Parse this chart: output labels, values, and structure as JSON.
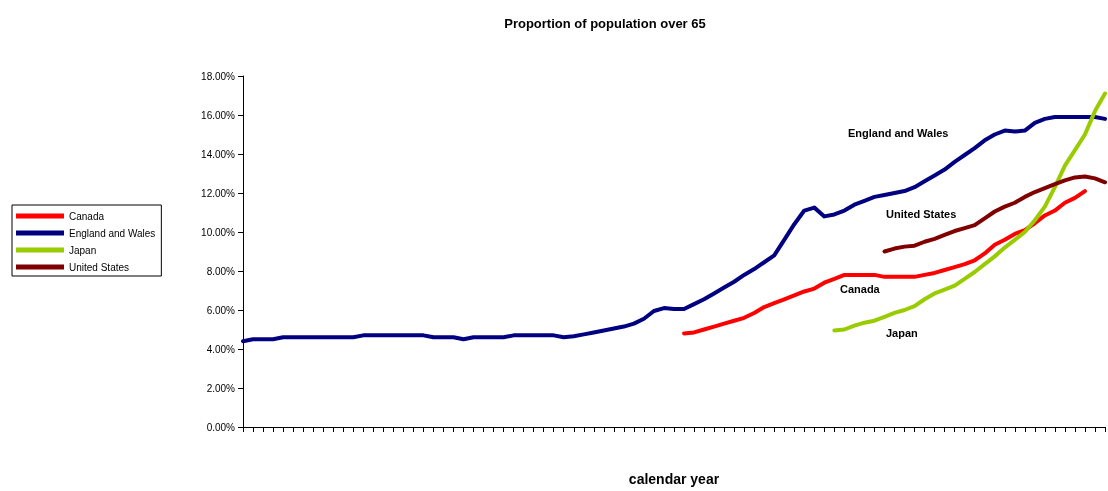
{
  "chart_data": {
    "type": "line",
    "title": "Proportion of population over 65",
    "xlabel": "calendar year",
    "categories": [
      null,
      null,
      null,
      null,
      null,
      null,
      null,
      null,
      null,
      null,
      null,
      null,
      null,
      null,
      null,
      null,
      null,
      null,
      null,
      null,
      null,
      null,
      null,
      null,
      null,
      null,
      null,
      null,
      null,
      null,
      null,
      null,
      null,
      null,
      null,
      null,
      null,
      null,
      null,
      null,
      null,
      null,
      null,
      null,
      null,
      null,
      null,
      null,
      null,
      null,
      null,
      null,
      null,
      null,
      null,
      null,
      null,
      null,
      null,
      null,
      null,
      null,
      null,
      null,
      null,
      null,
      null,
      null,
      null,
      null,
      null,
      null,
      null,
      null,
      null,
      null,
      null,
      null,
      null,
      null,
      null,
      null,
      null,
      null,
      null,
      null,
      null
    ],
    "series": [
      {
        "name": "Canada",
        "color": "#ff0000",
        "values": [
          null,
          null,
          null,
          null,
          null,
          null,
          null,
          null,
          null,
          null,
          null,
          null,
          null,
          null,
          null,
          null,
          null,
          null,
          null,
          null,
          null,
          null,
          null,
          null,
          null,
          null,
          null,
          null,
          null,
          null,
          null,
          null,
          null,
          null,
          null,
          null,
          null,
          null,
          null,
          null,
          null,
          null,
          null,
          null,
          4.8,
          4.85,
          5.0,
          5.15,
          5.3,
          5.45,
          5.6,
          5.85,
          6.15,
          6.35,
          6.55,
          6.75,
          6.95,
          7.1,
          7.4,
          7.6,
          7.8,
          7.8,
          7.8,
          7.8,
          7.7,
          7.7,
          7.7,
          7.7,
          7.8,
          7.9,
          8.05,
          8.2,
          8.35,
          8.55,
          8.9,
          9.35,
          9.6,
          9.9,
          10.1,
          10.45,
          10.85,
          11.1,
          11.5,
          11.75,
          12.1,
          null,
          null
        ]
      },
      {
        "name": "England and Wales",
        "color": "#000080",
        "values": [
          4.4,
          4.5,
          4.5,
          4.5,
          4.6,
          4.6,
          4.6,
          4.6,
          4.6,
          4.6,
          4.6,
          4.6,
          4.7,
          4.7,
          4.7,
          4.7,
          4.7,
          4.7,
          4.7,
          4.6,
          4.6,
          4.6,
          4.5,
          4.6,
          4.6,
          4.6,
          4.6,
          4.7,
          4.7,
          4.7,
          4.7,
          4.7,
          4.6,
          4.65,
          4.75,
          4.85,
          4.95,
          5.05,
          5.15,
          5.3,
          5.55,
          5.95,
          6.1,
          6.05,
          6.05,
          6.3,
          6.55,
          6.85,
          7.15,
          7.45,
          7.8,
          8.1,
          8.45,
          8.8,
          9.6,
          10.4,
          11.1,
          11.25,
          10.8,
          10.9,
          11.1,
          11.4,
          11.6,
          11.8,
          11.9,
          12.0,
          12.1,
          12.3,
          12.6,
          12.9,
          13.2,
          13.6,
          13.95,
          14.3,
          14.7,
          15.0,
          15.2,
          15.15,
          15.2,
          15.6,
          15.8,
          15.9,
          15.9,
          15.9,
          15.9,
          15.9,
          15.8
        ]
      },
      {
        "name": "Japan",
        "color": "#99cc00",
        "values": [
          null,
          null,
          null,
          null,
          null,
          null,
          null,
          null,
          null,
          null,
          null,
          null,
          null,
          null,
          null,
          null,
          null,
          null,
          null,
          null,
          null,
          null,
          null,
          null,
          null,
          null,
          null,
          null,
          null,
          null,
          null,
          null,
          null,
          null,
          null,
          null,
          null,
          null,
          null,
          null,
          null,
          null,
          null,
          null,
          null,
          null,
          null,
          null,
          null,
          null,
          null,
          null,
          null,
          null,
          null,
          null,
          null,
          null,
          null,
          4.95,
          5.0,
          5.2,
          5.35,
          5.45,
          5.65,
          5.85,
          6.0,
          6.2,
          6.55,
          6.85,
          7.05,
          7.25,
          7.6,
          7.95,
          8.35,
          8.75,
          9.2,
          9.6,
          10.0,
          10.6,
          11.3,
          12.3,
          13.4,
          14.2,
          15.0,
          16.2,
          17.1
        ]
      },
      {
        "name": "United States",
        "color": "#800000",
        "values": [
          null,
          null,
          null,
          null,
          null,
          null,
          null,
          null,
          null,
          null,
          null,
          null,
          null,
          null,
          null,
          null,
          null,
          null,
          null,
          null,
          null,
          null,
          null,
          null,
          null,
          null,
          null,
          null,
          null,
          null,
          null,
          null,
          null,
          null,
          null,
          null,
          null,
          null,
          null,
          null,
          null,
          null,
          null,
          null,
          null,
          null,
          null,
          null,
          null,
          null,
          null,
          null,
          null,
          null,
          null,
          null,
          null,
          null,
          null,
          null,
          null,
          null,
          null,
          null,
          9.0,
          9.15,
          9.25,
          9.3,
          9.5,
          9.65,
          9.85,
          10.05,
          10.2,
          10.35,
          10.7,
          11.05,
          11.3,
          11.5,
          11.8,
          12.05,
          12.25,
          12.45,
          12.65,
          12.8,
          12.85,
          12.75,
          12.55
        ]
      }
    ],
    "ylim": [
      0,
      18
    ],
    "yticks": [
      {
        "value": 0,
        "label": "0.00%"
      },
      {
        "value": 2,
        "label": "2.00%"
      },
      {
        "value": 4,
        "label": "4.00%"
      },
      {
        "value": 6,
        "label": "6.00%"
      },
      {
        "value": 8,
        "label": "8.00%"
      },
      {
        "value": 10,
        "label": "10.00%"
      },
      {
        "value": 12,
        "label": "12.00%"
      },
      {
        "value": 14,
        "label": "14.00%"
      },
      {
        "value": 16,
        "label": "16.00%"
      },
      {
        "value": 18,
        "label": "18.00%"
      }
    ],
    "annotations": [
      "England and Wales",
      "United States",
      "Canada",
      "Japan"
    ],
    "grid": false,
    "legend": "left",
    "marker": "none",
    "line_style": "solid"
  }
}
